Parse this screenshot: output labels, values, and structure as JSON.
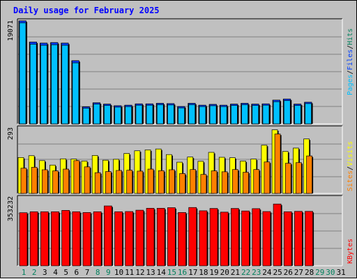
{
  "title": "Daily usage for February 2025",
  "colors": {
    "background": "#c0c0c0",
    "hits": "#00805c",
    "files": "#0040ff",
    "pages": "#00c0ff",
    "visits": "#ffff00",
    "sites": "#ff8000",
    "kbytes": "#ff0000",
    "weekend_day": "#00805c",
    "weekday": "#000000"
  },
  "chart_data": [
    {
      "type": "bar",
      "categories": [
        "1",
        "2",
        "3",
        "4",
        "5",
        "6",
        "7",
        "8",
        "9",
        "10",
        "11",
        "12",
        "13",
        "14",
        "15",
        "16",
        "17",
        "18",
        "19",
        "20",
        "21",
        "22",
        "23",
        "24",
        "25",
        "26",
        "27",
        "28",
        "29",
        "30",
        "31"
      ],
      "weekend_days": [
        "1",
        "2",
        "8",
        "9",
        "15",
        "16",
        "22",
        "23",
        "29",
        "30"
      ],
      "ymax_label": "19071",
      "ylim": [
        0,
        19071
      ],
      "legend": [
        "Pages",
        "Files",
        "Hits"
      ],
      "series": [
        {
          "name": "Hits",
          "values": [
            19071,
            15150,
            14950,
            15050,
            14950,
            11700,
            3150,
            3900,
            3650,
            3350,
            3450,
            3700,
            3700,
            3800,
            3750,
            3200,
            3800,
            3450,
            3600,
            3450,
            3650,
            3800,
            3650,
            3700,
            4400,
            4600,
            3650,
            4000,
            0,
            0,
            0
          ]
        },
        {
          "name": "Files",
          "values": [
            19071,
            15150,
            14950,
            15050,
            14950,
            11700,
            3150,
            3900,
            3650,
            3350,
            3450,
            3700,
            3700,
            3800,
            3750,
            3200,
            3800,
            3450,
            3600,
            3450,
            3650,
            3800,
            3650,
            3700,
            4400,
            4600,
            3650,
            4000,
            0,
            0,
            0
          ]
        },
        {
          "name": "Pages",
          "values": [
            18700,
            14750,
            14550,
            14650,
            14550,
            11300,
            2900,
            3650,
            3400,
            3100,
            3200,
            3450,
            3450,
            3550,
            3500,
            2950,
            3550,
            3200,
            3350,
            3200,
            3400,
            3550,
            3400,
            3450,
            4100,
            4300,
            3400,
            3750,
            0,
            0,
            0
          ]
        }
      ]
    },
    {
      "type": "bar",
      "categories": [
        "1",
        "2",
        "3",
        "4",
        "5",
        "6",
        "7",
        "8",
        "9",
        "10",
        "11",
        "12",
        "13",
        "14",
        "15",
        "16",
        "17",
        "18",
        "19",
        "20",
        "21",
        "22",
        "23",
        "24",
        "25",
        "26",
        "27",
        "28",
        "29",
        "30",
        "31"
      ],
      "ymax_label": "293",
      "ylim": [
        0,
        293
      ],
      "legend": [
        "Sites",
        "Visits"
      ],
      "series": [
        {
          "name": "Visits",
          "values": [
            161,
            169,
            147,
            127,
            155,
            154,
            145,
            170,
            149,
            153,
            179,
            191,
            195,
            199,
            174,
            140,
            163,
            144,
            184,
            162,
            160,
            145,
            154,
            216,
            285,
            188,
            203,
            244,
            0,
            0,
            0
          ]
        },
        {
          "name": "Sites",
          "values": [
            113,
            117,
            106,
            101,
            109,
            147,
            119,
            93,
            98,
            103,
            104,
            100,
            109,
            102,
            106,
            89,
            107,
            85,
            101,
            97,
            107,
            95,
            107,
            141,
            266,
            135,
            138,
            168,
            0,
            0,
            0
          ]
        }
      ]
    },
    {
      "type": "bar",
      "categories": [
        "1",
        "2",
        "3",
        "4",
        "5",
        "6",
        "7",
        "8",
        "9",
        "10",
        "11",
        "12",
        "13",
        "14",
        "15",
        "16",
        "17",
        "18",
        "19",
        "20",
        "21",
        "22",
        "23",
        "24",
        "25",
        "26",
        "27",
        "28",
        "29",
        "30",
        "31"
      ],
      "ymax_label": "353232",
      "ylim": [
        0,
        353232
      ],
      "legend": [
        "KBytes"
      ],
      "series": [
        {
          "name": "KBytes",
          "values": [
            275000,
            280000,
            280000,
            280000,
            287000,
            280000,
            276000,
            280000,
            310000,
            280000,
            281000,
            288000,
            298000,
            298000,
            301000,
            276000,
            302000,
            285000,
            297000,
            278000,
            297000,
            284000,
            296000,
            281000,
            320000,
            280000,
            282000,
            282000,
            0,
            0,
            0
          ]
        }
      ]
    }
  ]
}
